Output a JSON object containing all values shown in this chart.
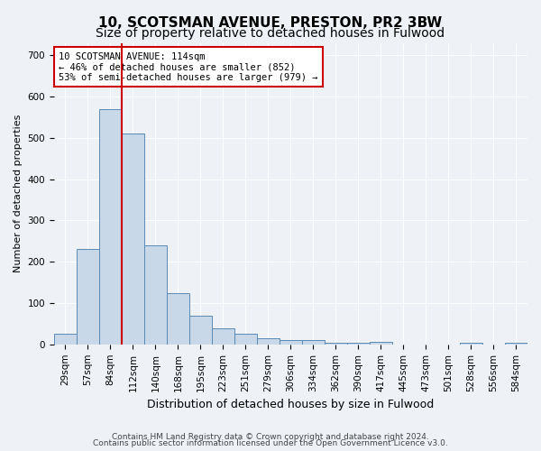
{
  "title_line1": "10, SCOTSMAN AVENUE, PRESTON, PR2 3BW",
  "title_line2": "Size of property relative to detached houses in Fulwood",
  "xlabel": "Distribution of detached houses by size in Fulwood",
  "ylabel": "Number of detached properties",
  "bins": [
    "29sqm",
    "57sqm",
    "84sqm",
    "112sqm",
    "140sqm",
    "168sqm",
    "195sqm",
    "223sqm",
    "251sqm",
    "279sqm",
    "306sqm",
    "334sqm",
    "362sqm",
    "390sqm",
    "417sqm",
    "445sqm",
    "473sqm",
    "501sqm",
    "528sqm",
    "556sqm",
    "584sqm"
  ],
  "values": [
    25,
    230,
    570,
    510,
    240,
    125,
    70,
    40,
    25,
    15,
    10,
    10,
    5,
    5,
    7,
    0,
    0,
    0,
    5,
    0,
    5
  ],
  "bar_color": "#c8d8e8",
  "bar_edge_color": "#5a8ab5",
  "vline_x_index": 3,
  "vline_color": "#cc0000",
  "ylim": [
    0,
    730
  ],
  "yticks": [
    0,
    100,
    200,
    300,
    400,
    500,
    600,
    700
  ],
  "annotation_line1": "10 SCOTSMAN AVENUE: 114sqm",
  "annotation_line2": "← 46% of detached houses are smaller (852)",
  "annotation_line3": "53% of semi-detached houses are larger (979) →",
  "footer_line1": "Contains HM Land Registry data © Crown copyright and database right 2024.",
  "footer_line2": "Contains public sector information licensed under the Open Government Licence v3.0.",
  "bg_color": "#eef2f7",
  "grid_color": "#ffffff",
  "title_fontsize": 11,
  "subtitle_fontsize": 10,
  "axis_label_fontsize": 8,
  "tick_fontsize": 7.5,
  "footer_fontsize": 6.5,
  "annot_fontsize": 7.5
}
